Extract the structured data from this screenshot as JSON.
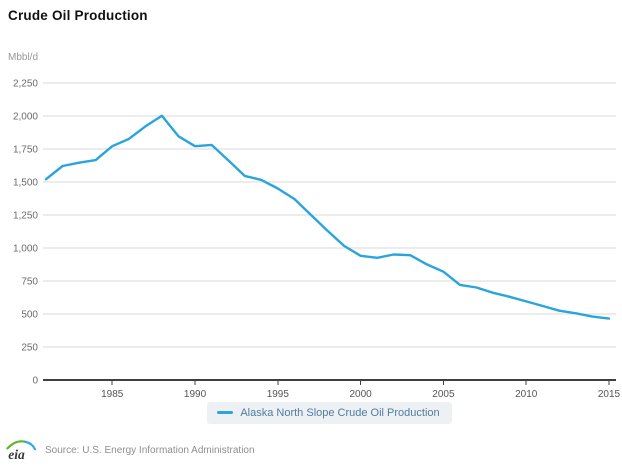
{
  "header": {
    "title": "Crude Oil Production"
  },
  "chart": {
    "unit_label": "Mbbl/d",
    "legend": {
      "label": "Alaska North Slope Crude Oil Production"
    },
    "colors": {
      "line": "#2aa5dc",
      "grid": "#d9d9d9",
      "axis": "#3f3f3f",
      "tick_text": "#6b6b6b",
      "x_tick_text": "#555555",
      "legend_bg": "#eef1f4",
      "legend_text": "#4e7ca0",
      "logo_green": "#63b32b",
      "logo_blue": "#2aa9e0",
      "logo_text": "#3c3c3c"
    }
  },
  "chart_data": {
    "type": "line",
    "title": "Crude Oil Production",
    "xlabel": "",
    "ylabel": "Mbbl/d",
    "xlim": [
      1981,
      2015
    ],
    "ylim": [
      0,
      2250
    ],
    "grid": true,
    "legend_position": "bottom",
    "x_ticks": [
      1985,
      1990,
      1995,
      2000,
      2005,
      2010,
      2015
    ],
    "y_ticks": [
      0,
      250,
      500,
      750,
      1000,
      1250,
      1500,
      1750,
      2000,
      2250
    ],
    "series": [
      {
        "name": "Alaska North Slope Crude Oil Production",
        "x": [
          1981,
          1982,
          1983,
          1984,
          1985,
          1986,
          1987,
          1988,
          1989,
          1990,
          1991,
          1992,
          1993,
          1994,
          1995,
          1996,
          1997,
          1998,
          1999,
          2000,
          2001,
          2002,
          2003,
          2004,
          2005,
          2006,
          2007,
          2008,
          2009,
          2010,
          2011,
          2012,
          2013,
          2014,
          2015
        ],
        "values": [
          1520,
          1620,
          1645,
          1665,
          1770,
          1825,
          1920,
          2000,
          1845,
          1770,
          1780,
          1665,
          1545,
          1515,
          1450,
          1370,
          1250,
          1130,
          1015,
          940,
          925,
          950,
          945,
          875,
          820,
          720,
          700,
          660,
          630,
          595,
          560,
          525,
          505,
          480,
          465
        ]
      }
    ]
  },
  "footer": {
    "logo_text": "eia",
    "source_text": "Source: U.S. Energy Information Administration"
  }
}
